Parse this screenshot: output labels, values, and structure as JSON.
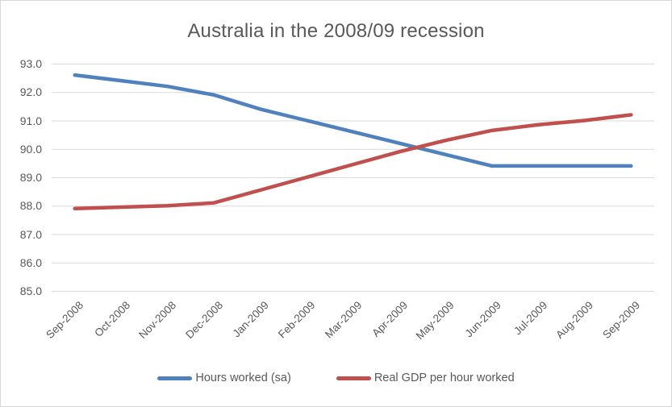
{
  "chart_data": {
    "type": "line",
    "title": "Australia in the 2008/09 recession",
    "categories": [
      "Sep-2008",
      "Oct-2008",
      "Nov-2008",
      "Dec-2008",
      "Jan-2009",
      "Feb-2009",
      "Mar-2009",
      "Apr-2009",
      "May-2009",
      "Jun-2009",
      "Jul-2009",
      "Aug-2009",
      "Sep-2009"
    ],
    "series": [
      {
        "name": "Hours worked (sa)",
        "color": "#4F81BD",
        "values": [
          92.6,
          92.4,
          92.2,
          91.9,
          91.4,
          91.0,
          90.6,
          90.2,
          89.8,
          89.4,
          89.4,
          89.4,
          89.4
        ]
      },
      {
        "name": "Real GDP per hour worked",
        "color": "#C0504D",
        "values": [
          87.9,
          87.95,
          88.0,
          88.1,
          88.55,
          89.0,
          89.45,
          89.9,
          90.3,
          90.65,
          90.85,
          91.0,
          91.2
        ]
      }
    ],
    "ylim": [
      85,
      93
    ],
    "ytick_labels": [
      "93.0",
      "92.0",
      "91.0",
      "90.0",
      "89.0",
      "88.0",
      "87.0",
      "86.0",
      "85.0"
    ],
    "xlabel": "",
    "ylabel": "",
    "grid": true,
    "legend_position": "bottom",
    "colors": {
      "text": "#595959",
      "gridline": "#D9D9D9",
      "border": "#D7D7D7",
      "background": "#FFFFFF"
    }
  }
}
